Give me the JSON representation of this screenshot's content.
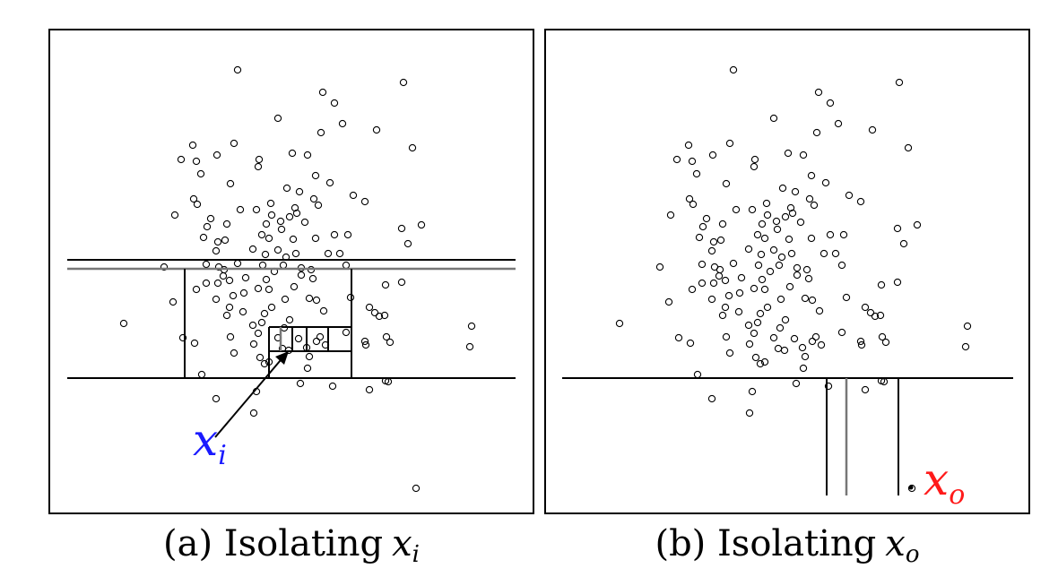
{
  "panels": [
    {
      "id": "a",
      "caption_prefix": "(a) Isolating",
      "caption_var": "x",
      "caption_sub": "i",
      "label_var": "x",
      "label_sub": "i",
      "label_color": "#1a1aff"
    },
    {
      "id": "b",
      "caption_prefix": "(b) Isolating",
      "caption_var": "x",
      "caption_sub": "o",
      "label_var": "x",
      "label_sub": "o",
      "label_color": "#ff1a1a"
    }
  ]
}
